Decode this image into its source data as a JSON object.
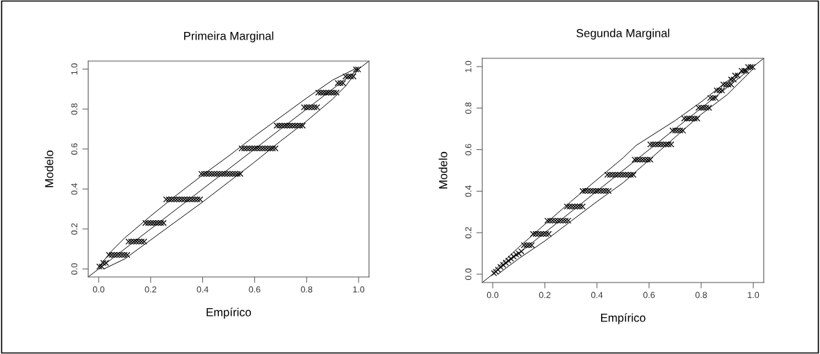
{
  "chart_data": [
    {
      "type": "scatter",
      "title": "Primeira Marginal",
      "xlabel": "Empírico",
      "ylabel": "Modelo",
      "xlim": [
        -0.04,
        1.04
      ],
      "ylim": [
        -0.04,
        1.04
      ],
      "xticks": [
        {
          "value": 0,
          "label": "0.0"
        },
        {
          "value": 0.2,
          "label": "0.2"
        },
        {
          "value": 0.4,
          "label": "0.4"
        },
        {
          "value": 0.6,
          "label": "0.6"
        },
        {
          "value": 0.8,
          "label": "0.8"
        },
        {
          "value": 1,
          "label": "1.0"
        }
      ],
      "yticks": [
        {
          "value": 0,
          "label": "0.0"
        },
        {
          "value": 0.2,
          "label": "0.2"
        },
        {
          "value": 0.4,
          "label": "0.4"
        },
        {
          "value": 0.6,
          "label": "0.6"
        },
        {
          "value": 0.8,
          "label": "0.8"
        },
        {
          "value": 1,
          "label": "1.0"
        }
      ],
      "grid": false,
      "legend": false,
      "series": [
        {
          "marker": "cross",
          "color": "#000000",
          "x": [
            0.003,
            0.012,
            0.018,
            0.028,
            0.04,
            0.05,
            0.06,
            0.07,
            0.08,
            0.09,
            0.1,
            0.11,
            0.115,
            0.125,
            0.135,
            0.145,
            0.155,
            0.165,
            0.175,
            0.18,
            0.19,
            0.2,
            0.21,
            0.22,
            0.23,
            0.24,
            0.25,
            0.26,
            0.27,
            0.28,
            0.29,
            0.3,
            0.31,
            0.32,
            0.33,
            0.34,
            0.35,
            0.36,
            0.37,
            0.38,
            0.39,
            0.395,
            0.405,
            0.415,
            0.425,
            0.435,
            0.445,
            0.455,
            0.465,
            0.475,
            0.485,
            0.495,
            0.505,
            0.515,
            0.525,
            0.535,
            0.545,
            0.55,
            0.56,
            0.57,
            0.58,
            0.59,
            0.6,
            0.61,
            0.62,
            0.63,
            0.64,
            0.65,
            0.66,
            0.67,
            0.68,
            0.685,
            0.695,
            0.705,
            0.715,
            0.725,
            0.735,
            0.745,
            0.755,
            0.765,
            0.775,
            0.785,
            0.79,
            0.8,
            0.81,
            0.82,
            0.83,
            0.84,
            0.845,
            0.855,
            0.865,
            0.875,
            0.885,
            0.895,
            0.905,
            0.915,
            0.92,
            0.93,
            0.94,
            0.95,
            0.96,
            0.97,
            0.98,
            0.99,
            0.998
          ],
          "values": [
            0.012,
            0.012,
            0.03,
            0.03,
            0.07,
            0.07,
            0.07,
            0.07,
            0.07,
            0.07,
            0.07,
            0.07,
            0.137,
            0.137,
            0.137,
            0.137,
            0.137,
            0.137,
            0.137,
            0.23,
            0.23,
            0.23,
            0.23,
            0.23,
            0.23,
            0.23,
            0.23,
            0.348,
            0.348,
            0.348,
            0.348,
            0.348,
            0.348,
            0.348,
            0.348,
            0.348,
            0.348,
            0.348,
            0.348,
            0.348,
            0.348,
            0.476,
            0.476,
            0.476,
            0.476,
            0.476,
            0.476,
            0.476,
            0.476,
            0.476,
            0.476,
            0.476,
            0.476,
            0.476,
            0.476,
            0.476,
            0.476,
            0.603,
            0.603,
            0.603,
            0.603,
            0.603,
            0.603,
            0.603,
            0.603,
            0.603,
            0.603,
            0.603,
            0.603,
            0.603,
            0.603,
            0.717,
            0.717,
            0.717,
            0.717,
            0.717,
            0.717,
            0.717,
            0.717,
            0.717,
            0.717,
            0.717,
            0.809,
            0.809,
            0.809,
            0.809,
            0.809,
            0.809,
            0.882,
            0.882,
            0.882,
            0.882,
            0.882,
            0.882,
            0.882,
            0.882,
            0.93,
            0.93,
            0.93,
            0.963,
            0.963,
            0.963,
            0.963,
            0.998,
            0.998
          ]
        },
        {
          "type": "line",
          "color": "#000000",
          "x": [
            0,
            0.05,
            0.1,
            0.2,
            0.3,
            0.4,
            0.5,
            0.6,
            0.7,
            0.8,
            0.9,
            0.985
          ],
          "values": [
            0.01,
            0.09,
            0.155,
            0.265,
            0.37,
            0.47,
            0.565,
            0.665,
            0.76,
            0.855,
            0.945,
            1
          ]
        },
        {
          "type": "line",
          "color": "#000000",
          "x": [
            0.02,
            0.1,
            0.2,
            0.3,
            0.4,
            0.5,
            0.6,
            0.7,
            0.8,
            0.9,
            0.95,
            1
          ],
          "values": [
            0,
            0.05,
            0.145,
            0.24,
            0.335,
            0.435,
            0.535,
            0.64,
            0.74,
            0.85,
            0.915,
            1
          ]
        },
        {
          "type": "line",
          "color": "#000000",
          "x": [
            -0.04,
            1.04
          ],
          "values": [
            -0.04,
            1.04
          ]
        }
      ]
    },
    {
      "type": "scatter",
      "title": "Segunda Marginal",
      "xlabel": "Empírico",
      "ylabel": "Modelo",
      "xlim": [
        -0.04,
        1.04
      ],
      "ylim": [
        -0.04,
        1.04
      ],
      "xticks": [
        {
          "value": 0,
          "label": "0.0"
        },
        {
          "value": 0.2,
          "label": "0.2"
        },
        {
          "value": 0.4,
          "label": "0.4"
        },
        {
          "value": 0.6,
          "label": "0.6"
        },
        {
          "value": 0.8,
          "label": "0.8"
        },
        {
          "value": 1,
          "label": "1.0"
        }
      ],
      "yticks": [
        {
          "value": 0,
          "label": "0.0"
        },
        {
          "value": 0.2,
          "label": "0.2"
        },
        {
          "value": 0.4,
          "label": "0.4"
        },
        {
          "value": 0.6,
          "label": "0.6"
        },
        {
          "value": 0.8,
          "label": "0.8"
        },
        {
          "value": 1,
          "label": "1.0"
        }
      ],
      "grid": false,
      "legend": false,
      "series": [
        {
          "marker": "cross",
          "color": "#000000",
          "x": [
            0.005,
            0.012,
            0.02,
            0.03,
            0.04,
            0.05,
            0.06,
            0.07,
            0.08,
            0.09,
            0.1,
            0.11,
            0.12,
            0.13,
            0.14,
            0.15,
            0.155,
            0.165,
            0.175,
            0.185,
            0.195,
            0.205,
            0.215,
            0.21,
            0.22,
            0.23,
            0.24,
            0.25,
            0.26,
            0.27,
            0.28,
            0.29,
            0.285,
            0.295,
            0.305,
            0.315,
            0.325,
            0.335,
            0.345,
            0.345,
            0.355,
            0.365,
            0.375,
            0.385,
            0.395,
            0.405,
            0.415,
            0.425,
            0.435,
            0.445,
            0.44,
            0.45,
            0.46,
            0.47,
            0.48,
            0.49,
            0.5,
            0.51,
            0.52,
            0.53,
            0.54,
            0.545,
            0.555,
            0.565,
            0.575,
            0.585,
            0.595,
            0.605,
            0.605,
            0.615,
            0.625,
            0.635,
            0.645,
            0.655,
            0.665,
            0.675,
            0.685,
            0.69,
            0.7,
            0.71,
            0.72,
            0.73,
            0.735,
            0.745,
            0.755,
            0.765,
            0.775,
            0.785,
            0.79,
            0.8,
            0.81,
            0.82,
            0.83,
            0.835,
            0.845,
            0.855,
            0.86,
            0.87,
            0.88,
            0.885,
            0.895,
            0.905,
            0.915,
            0.915,
            0.925,
            0.93,
            0.94,
            0.955,
            0.965,
            0.972,
            0.98,
            0.99,
            0.998
          ],
          "values": [
            0.005,
            0.012,
            0.022,
            0.035,
            0.045,
            0.055,
            0.065,
            0.075,
            0.085,
            0.095,
            0.1,
            0.11,
            0.14,
            0.14,
            0.14,
            0.14,
            0.194,
            0.194,
            0.194,
            0.194,
            0.194,
            0.194,
            0.194,
            0.258,
            0.258,
            0.258,
            0.258,
            0.258,
            0.258,
            0.258,
            0.258,
            0.258,
            0.326,
            0.326,
            0.326,
            0.326,
            0.326,
            0.326,
            0.326,
            0.401,
            0.401,
            0.401,
            0.401,
            0.401,
            0.401,
            0.401,
            0.401,
            0.401,
            0.401,
            0.401,
            0.479,
            0.479,
            0.479,
            0.479,
            0.479,
            0.479,
            0.479,
            0.479,
            0.479,
            0.479,
            0.479,
            0.552,
            0.552,
            0.552,
            0.552,
            0.552,
            0.552,
            0.552,
            0.625,
            0.625,
            0.625,
            0.625,
            0.625,
            0.625,
            0.625,
            0.625,
            0.625,
            0.692,
            0.692,
            0.692,
            0.692,
            0.692,
            0.75,
            0.75,
            0.75,
            0.75,
            0.75,
            0.75,
            0.802,
            0.802,
            0.802,
            0.802,
            0.802,
            0.849,
            0.849,
            0.849,
            0.885,
            0.885,
            0.885,
            0.914,
            0.914,
            0.914,
            0.914,
            0.938,
            0.938,
            0.957,
            0.957,
            0.98,
            0.98,
            0.98,
            0.998,
            0.998,
            0.998
          ]
        },
        {
          "type": "line",
          "color": "#000000",
          "x": [
            0,
            0.1,
            0.2,
            0.3,
            0.4,
            0.5,
            0.55,
            0.6,
            0.7,
            0.8,
            0.9,
            0.985
          ],
          "values": [
            0.01,
            0.13,
            0.24,
            0.35,
            0.455,
            0.56,
            0.62,
            0.66,
            0.74,
            0.83,
            0.93,
            1
          ]
        },
        {
          "type": "line",
          "color": "#000000",
          "x": [
            0.02,
            0.1,
            0.2,
            0.3,
            0.4,
            0.5,
            0.6,
            0.7,
            0.8,
            0.9,
            1
          ],
          "values": [
            0,
            0.075,
            0.16,
            0.255,
            0.35,
            0.44,
            0.55,
            0.66,
            0.77,
            0.865,
            0.99
          ]
        },
        {
          "type": "line",
          "color": "#000000",
          "x": [
            -0.04,
            1.04
          ],
          "values": [
            -0.04,
            1.04
          ]
        }
      ]
    }
  ]
}
